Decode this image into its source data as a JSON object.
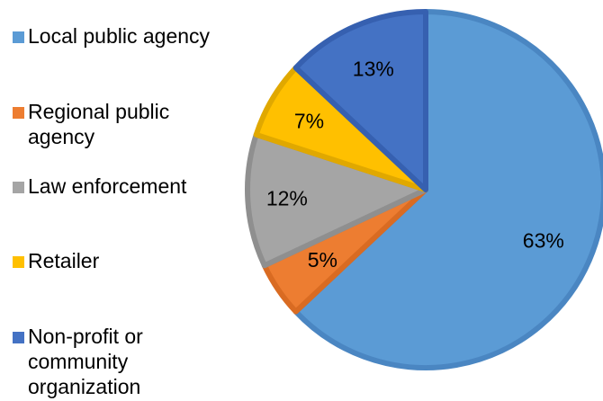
{
  "chart_data": {
    "type": "pie",
    "categories": [
      "Local public agency",
      "Regional public\nagency",
      "Law enforcement",
      "Retailer",
      "Non-profit or\ncommunity\norganization"
    ],
    "values": [
      63,
      5,
      12,
      7,
      13
    ],
    "data_labels": [
      "63%",
      "5%",
      "12%",
      "7%",
      "13%"
    ],
    "colors": [
      "#5B9BD5",
      "#ED7D31",
      "#A5A5A5",
      "#FFC000",
      "#4472C4"
    ],
    "edge_colors": [
      "#4A86C2",
      "#D96B22",
      "#8F8F8F",
      "#E0A800",
      "#3660B0"
    ],
    "legend_position": "left",
    "start_angle_deg": 0,
    "direction": "clockwise",
    "title": "",
    "xlabel": "",
    "ylabel": ""
  }
}
